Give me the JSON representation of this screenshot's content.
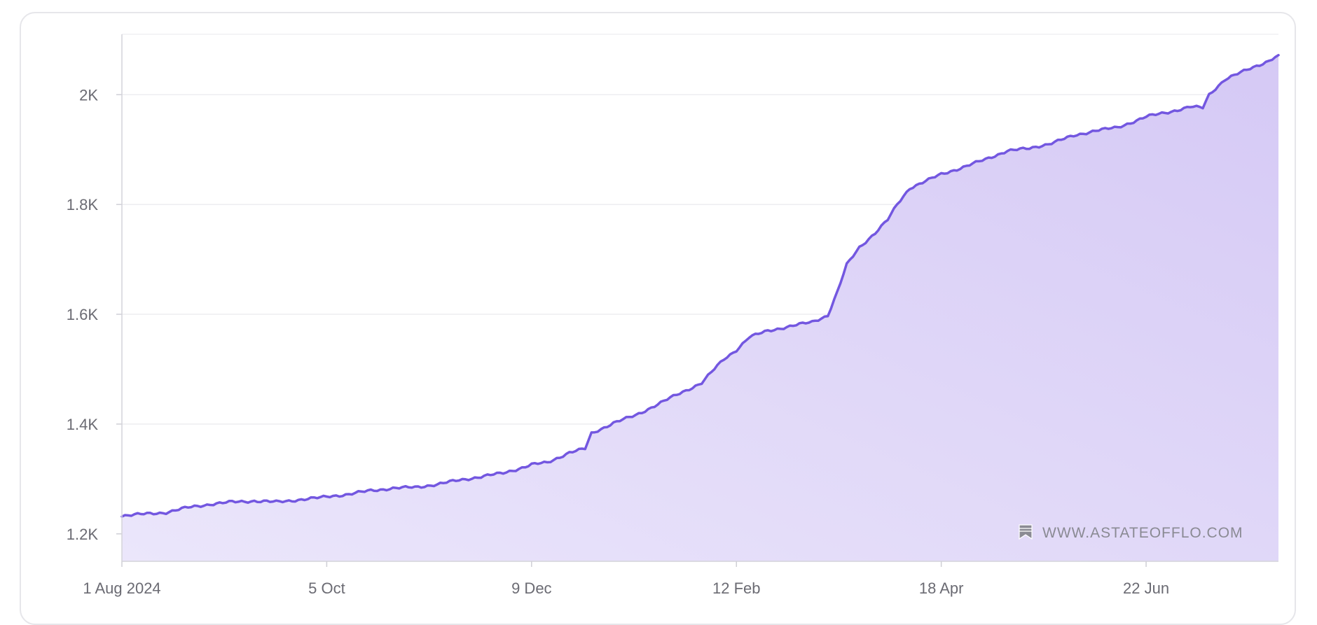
{
  "chart_data": {
    "type": "area",
    "x_ticks": [
      "1 Aug 2024",
      "5 Oct",
      "9 Dec",
      "12 Feb",
      "18 Apr",
      "22 Jun"
    ],
    "y_ticks": [
      "1.2K",
      "1.4K",
      "1.6K",
      "1.8K",
      "2K"
    ],
    "ylim": [
      1150,
      2110
    ],
    "xlim": [
      "2024-08-01",
      "2025-08-03"
    ],
    "grid": true,
    "series": [
      {
        "color": "#7357e0",
        "fill": "#dcd2f7",
        "points": [
          [
            "2024-08-01",
            1233
          ],
          [
            "2024-08-08",
            1236
          ],
          [
            "2024-08-15",
            1239
          ],
          [
            "2024-08-22",
            1248
          ],
          [
            "2024-08-29",
            1254
          ],
          [
            "2024-09-05",
            1258
          ],
          [
            "2024-09-12",
            1260
          ],
          [
            "2024-09-19",
            1258
          ],
          [
            "2024-09-26",
            1262
          ],
          [
            "2024-10-03",
            1266
          ],
          [
            "2024-10-05",
            1268
          ],
          [
            "2024-10-12",
            1272
          ],
          [
            "2024-10-19",
            1279
          ],
          [
            "2024-10-26",
            1283
          ],
          [
            "2024-11-02",
            1285
          ],
          [
            "2024-11-09",
            1290
          ],
          [
            "2024-11-16",
            1298
          ],
          [
            "2024-11-23",
            1304
          ],
          [
            "2024-11-30",
            1311
          ],
          [
            "2024-12-07",
            1322
          ],
          [
            "2024-12-09",
            1326
          ],
          [
            "2024-12-14",
            1330
          ],
          [
            "2024-12-21",
            1348
          ],
          [
            "2024-12-26",
            1355
          ],
          [
            "2024-12-28",
            1383
          ],
          [
            "2025-01-04",
            1402
          ],
          [
            "2025-01-11",
            1416
          ],
          [
            "2025-01-18",
            1436
          ],
          [
            "2025-01-25",
            1456
          ],
          [
            "2025-02-01",
            1475
          ],
          [
            "2025-02-05",
            1500
          ],
          [
            "2025-02-08",
            1518
          ],
          [
            "2025-02-12",
            1535
          ],
          [
            "2025-02-16",
            1558
          ],
          [
            "2025-02-22",
            1570
          ],
          [
            "2025-03-01",
            1578
          ],
          [
            "2025-03-08",
            1586
          ],
          [
            "2025-03-13",
            1598
          ],
          [
            "2025-03-16",
            1640
          ],
          [
            "2025-03-19",
            1690
          ],
          [
            "2025-03-23",
            1722
          ],
          [
            "2025-03-28",
            1748
          ],
          [
            "2025-04-01",
            1772
          ],
          [
            "2025-04-04",
            1800
          ],
          [
            "2025-04-08",
            1830
          ],
          [
            "2025-04-14",
            1845
          ],
          [
            "2025-04-18",
            1855
          ],
          [
            "2025-04-25",
            1868
          ],
          [
            "2025-05-02",
            1882
          ],
          [
            "2025-05-09",
            1898
          ],
          [
            "2025-05-16",
            1902
          ],
          [
            "2025-05-23",
            1912
          ],
          [
            "2025-05-30",
            1925
          ],
          [
            "2025-06-06",
            1935
          ],
          [
            "2025-06-13",
            1940
          ],
          [
            "2025-06-22",
            1960
          ],
          [
            "2025-06-29",
            1968
          ],
          [
            "2025-07-06",
            1978
          ],
          [
            "2025-07-10",
            1976
          ],
          [
            "2025-07-12",
            2000
          ],
          [
            "2025-07-17",
            2028
          ],
          [
            "2025-07-24",
            2045
          ],
          [
            "2025-07-31",
            2062
          ],
          [
            "2025-08-03",
            2072
          ]
        ]
      }
    ]
  },
  "watermark": {
    "text": "WWW.ASTATEOFFLO.COM",
    "icon": "bookmark-icon"
  }
}
